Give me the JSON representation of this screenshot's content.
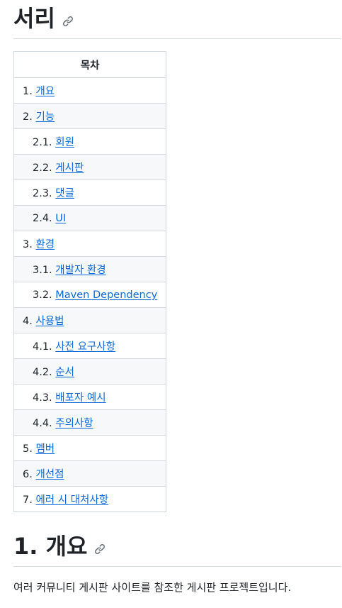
{
  "title": "서리",
  "toc": {
    "header": "목차",
    "items": [
      {
        "num": "1.",
        "label": "개요",
        "level": 1
      },
      {
        "num": "2.",
        "label": "기능",
        "level": 1
      },
      {
        "num": "2.1.",
        "label": "회원",
        "level": 2
      },
      {
        "num": "2.2.",
        "label": "게시판",
        "level": 2
      },
      {
        "num": "2.3.",
        "label": "댓글",
        "level": 2
      },
      {
        "num": "2.4.",
        "label": "UI",
        "level": 2
      },
      {
        "num": "3.",
        "label": "환경",
        "level": 1
      },
      {
        "num": "3.1.",
        "label": "개발자 환경",
        "level": 2
      },
      {
        "num": "3.2.",
        "label": "Maven Dependency",
        "level": 2
      },
      {
        "num": "4.",
        "label": "사용법",
        "level": 1
      },
      {
        "num": "4.1.",
        "label": "사전 요구사항",
        "level": 2
      },
      {
        "num": "4.2.",
        "label": "순서",
        "level": 2
      },
      {
        "num": "4.3.",
        "label": "배포자 예시",
        "level": 2
      },
      {
        "num": "4.4.",
        "label": "주의사항",
        "level": 2
      },
      {
        "num": "5.",
        "label": "멤버",
        "level": 1
      },
      {
        "num": "6.",
        "label": "개선점",
        "level": 1
      },
      {
        "num": "7.",
        "label": "에러 시 대처사항",
        "level": 1
      }
    ]
  },
  "section1": {
    "heading": "1. 개요",
    "paragraph": "여러 커뮤니티 게시판 사이트를 참조한 게시판 프로젝트입니다."
  },
  "colors": {
    "link": "#0969da",
    "text": "#1f2328",
    "border": "#d0d7de",
    "row_alt": "#f6f8fa"
  },
  "icons": [
    "link-icon"
  ]
}
